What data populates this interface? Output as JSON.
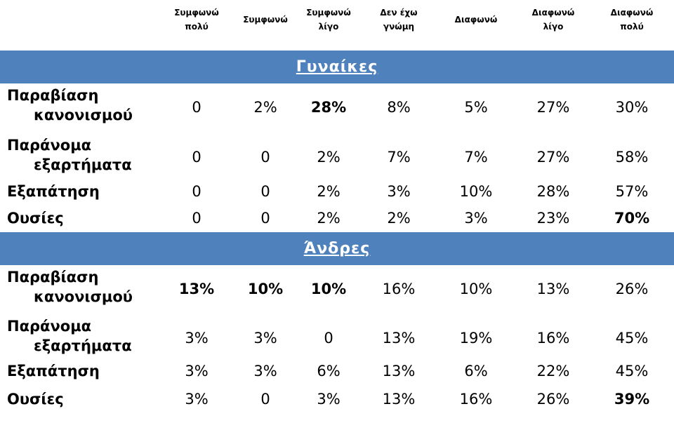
{
  "headers": [
    [
      "Συμφωνώ",
      "πολύ"
    ],
    [
      "Συμφωνώ",
      ""
    ],
    [
      "Συμφωνώ",
      "λίγο"
    ],
    [
      "Δεν έχω",
      "γνώμη"
    ],
    [
      "Διαφωνώ",
      ""
    ],
    [
      "Διαφωνώ",
      "λίγο"
    ],
    [
      "Διαφωνώ",
      "πολύ"
    ]
  ],
  "sections": [
    {
      "title": "Γυναίκες",
      "rows": [
        {
          "label": [
            "Παραβίαση",
            "κανονισμού"
          ],
          "values": [
            "0",
            "2%",
            "28%",
            "8%",
            "5%",
            "27%",
            "30%"
          ],
          "bold": [
            2
          ]
        },
        {
          "label": [
            "Παράνομα",
            "εξαρτήματα"
          ],
          "values": [
            "0",
            "0",
            "2%",
            "7%",
            "7%",
            "27%",
            "58%"
          ],
          "bold": []
        },
        {
          "label": [
            "Εξαπάτηση"
          ],
          "values": [
            "0",
            "0",
            "2%",
            "3%",
            "10%",
            "28%",
            "57%"
          ],
          "bold": []
        },
        {
          "label": [
            "Ουσίες"
          ],
          "values": [
            "0",
            "0",
            "2%",
            "2%",
            "3%",
            "23%",
            "70%"
          ],
          "bold": [
            6
          ]
        }
      ]
    },
    {
      "title": "Άνδρες",
      "rows": [
        {
          "label": [
            "Παραβίαση",
            "κανονισμού"
          ],
          "values": [
            "13%",
            "10%",
            "10%",
            "16%",
            "10%",
            "13%",
            "26%"
          ],
          "bold": [
            0,
            1,
            2
          ]
        },
        {
          "label": [
            "Παράνομα",
            "εξαρτήματα"
          ],
          "values": [
            "3%",
            "3%",
            "0",
            "13%",
            "19%",
            "16%",
            "45%"
          ],
          "bold": []
        },
        {
          "label": [
            "Εξαπάτηση"
          ],
          "values": [
            "3%",
            "3%",
            "6%",
            "13%",
            "6%",
            "22%",
            "45%"
          ],
          "bold": []
        },
        {
          "label": [
            "Ουσίες"
          ],
          "values": [
            "3%",
            "0",
            "3%",
            "13%",
            "16%",
            "26%",
            "39%"
          ],
          "bold": [
            6
          ]
        }
      ]
    }
  ]
}
